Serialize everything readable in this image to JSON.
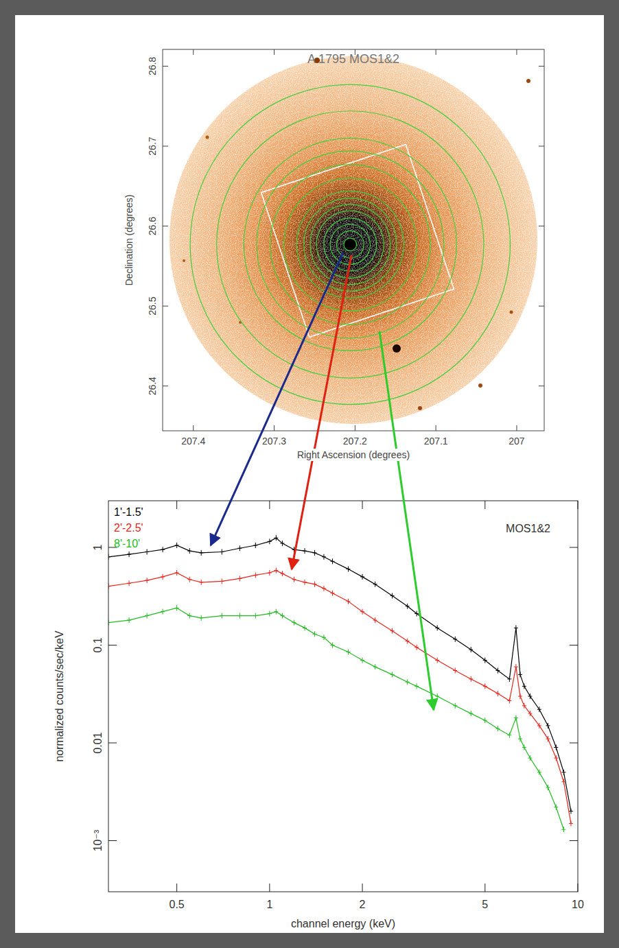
{
  "chart_data": [
    {
      "type": "image",
      "title": "A 1795 MOS1&2",
      "x_label": "Right Ascension (degrees)",
      "y_label": "Declination (degrees)",
      "xlim": [
        207.438,
        206.966
      ],
      "ylim": [
        26.344,
        26.821
      ],
      "xticks": [
        207.4,
        207.3,
        207.2,
        207.1,
        207
      ],
      "yticks": [
        26.4,
        26.5,
        26.6,
        26.7,
        26.8
      ],
      "center": [
        207.206,
        26.577
      ],
      "annuli": [
        0.008,
        0.017,
        0.025,
        0.033,
        0.042,
        0.05,
        0.058,
        0.067,
        0.083,
        0.1,
        0.117,
        0.133,
        0.167,
        0.2
      ],
      "color": "#3ecf3e"
    },
    {
      "type": "line",
      "x_label": "channel energy (keV)",
      "y_label": "normalized counts/sec/keV",
      "log": true,
      "xlim": [
        0.3,
        10
      ],
      "ylim": [
        0.0003,
        3
      ],
      "xticks": [
        0.5,
        1,
        2,
        5,
        10
      ],
      "yticks": [
        {
          "value": 0.001,
          "label": "10⁻³"
        },
        0.01,
        0.1,
        1
      ],
      "legend": "upper left",
      "annotation": "MOS1&2",
      "x": [
        0.3,
        0.35,
        0.4,
        0.45,
        0.5,
        0.55,
        0.6,
        0.7,
        0.8,
        0.9,
        1.0,
        1.05,
        1.1,
        1.2,
        1.3,
        1.4,
        1.5,
        1.6,
        1.8,
        2.0,
        2.2,
        2.5,
        2.8,
        3.0,
        3.5,
        4.0,
        4.5,
        5.0,
        5.5,
        6.0,
        6.3,
        6.5,
        6.7,
        7.0,
        7.5,
        8.0,
        8.5,
        9.0,
        9.5
      ],
      "series": [
        {
          "name": "1'-1.5'",
          "color": "#000000",
          "marker": "cross",
          "line_style": "solid",
          "values": [
            0.8,
            0.85,
            0.9,
            0.95,
            1.05,
            0.92,
            0.88,
            0.9,
            0.98,
            1.05,
            1.15,
            1.25,
            1.1,
            0.95,
            0.92,
            0.88,
            0.8,
            0.72,
            0.6,
            0.5,
            0.42,
            0.32,
            0.25,
            0.21,
            0.15,
            0.115,
            0.09,
            0.07,
            0.055,
            0.045,
            0.15,
            0.05,
            0.038,
            0.03,
            0.022,
            0.015,
            0.009,
            0.005,
            0.002
          ]
        },
        {
          "name": "2'-2.5'",
          "color": "#e8261c",
          "marker": "cross",
          "line_style": "solid",
          "values": [
            0.4,
            0.43,
            0.46,
            0.5,
            0.55,
            0.47,
            0.44,
            0.45,
            0.48,
            0.52,
            0.55,
            0.58,
            0.54,
            0.47,
            0.44,
            0.42,
            0.38,
            0.34,
            0.28,
            0.22,
            0.18,
            0.14,
            0.11,
            0.095,
            0.07,
            0.055,
            0.045,
            0.038,
            0.032,
            0.027,
            0.06,
            0.03,
            0.024,
            0.02,
            0.015,
            0.011,
            0.007,
            0.004,
            0.0015
          ]
        },
        {
          "name": "8'-10'",
          "color": "#22bb22",
          "marker": "cross",
          "line_style": "solid",
          "values": [
            0.17,
            0.18,
            0.2,
            0.22,
            0.24,
            0.2,
            0.19,
            0.2,
            0.2,
            0.2,
            0.21,
            0.22,
            0.2,
            0.17,
            0.15,
            0.13,
            0.12,
            0.1,
            0.085,
            0.07,
            0.06,
            0.05,
            0.042,
            0.038,
            0.03,
            0.024,
            0.02,
            0.017,
            0.014,
            0.012,
            0.018,
            0.011,
            0.009,
            0.007,
            0.005,
            0.0035,
            0.0022,
            0.0013,
            null
          ]
        }
      ]
    }
  ]
}
